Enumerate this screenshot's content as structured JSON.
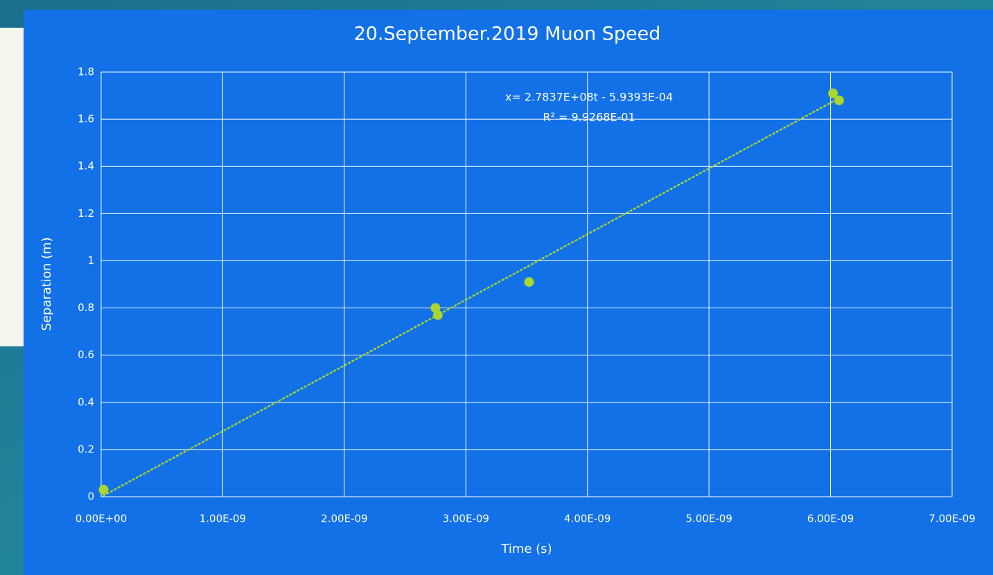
{
  "chart_data": {
    "type": "scatter",
    "title": "20.September.2019  Muon Speed",
    "xlabel": "Time (s)",
    "ylabel": "Separation (m)",
    "series": [
      {
        "name": "Separation",
        "color": "#a9d62f",
        "x": [
          2e-11,
          2.75e-09,
          2.77e-09,
          3.52e-09,
          6.02e-09,
          6.07e-09
        ],
        "values": [
          0.03,
          0.8,
          0.77,
          0.91,
          1.71,
          1.68
        ]
      }
    ],
    "trendline": {
      "slope": 278370000,
      "intercept": -0.00059393,
      "color": "#a9d62f",
      "label": "x= 2.7837E+08t - 5.9393E-04",
      "r2_label": "R² = 9.9268E-01"
    },
    "xlim": [
      0,
      7e-09
    ],
    "xticks": [
      {
        "value": 0,
        "label": "0.00E+00"
      },
      {
        "value": 1e-09,
        "label": "1.00E-09"
      },
      {
        "value": 2e-09,
        "label": "2.00E-09"
      },
      {
        "value": 3e-09,
        "label": "3.00E-09"
      },
      {
        "value": 4e-09,
        "label": "4.00E-09"
      },
      {
        "value": 5e-09,
        "label": "5.00E-09"
      },
      {
        "value": 6e-09,
        "label": "6.00E-09"
      },
      {
        "value": 7e-09,
        "label": "7.00E-09"
      }
    ],
    "ylim": [
      0,
      1.8
    ],
    "yticks": [
      0,
      0.2,
      0.4,
      0.6,
      0.8,
      1,
      1.2,
      1.4,
      1.6,
      1.8
    ],
    "grid": true
  }
}
